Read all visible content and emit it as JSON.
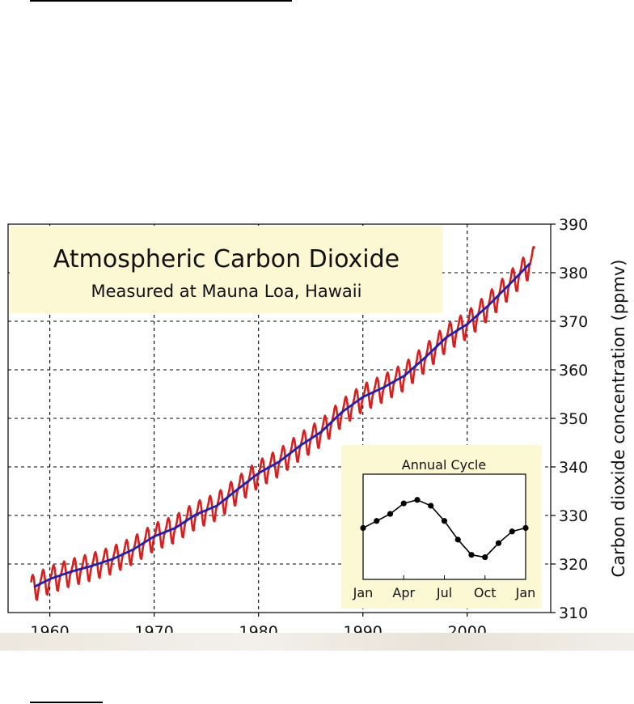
{
  "chart_data": {
    "type": "line",
    "title": "Atmospheric Carbon Dioxide",
    "subtitle": "Measured at Mauna Loa, Hawaii",
    "ylabel": "Carbon dioxide concentration (ppmv)",
    "xlabel": "",
    "xlim": [
      1956,
      2008
    ],
    "ylim": [
      310,
      390
    ],
    "xticks": [
      "1960",
      "1970",
      "1980",
      "1990",
      "2000"
    ],
    "yticks": [
      "310",
      "320",
      "330",
      "340",
      "350",
      "360",
      "370",
      "380",
      "390"
    ],
    "grid": true,
    "series": [
      {
        "color": "#d62020",
        "style": "monthly",
        "seasonal_amplitude": 3.0,
        "x": [
          1958.2,
          2006.5
        ]
      },
      {
        "color": "#2020b0",
        "style": "annual trend",
        "x": [
          1958.5,
          1960,
          1962,
          1964,
          1966,
          1968,
          1970,
          1972,
          1974,
          1976,
          1978,
          1980,
          1982,
          1984,
          1986,
          1988,
          1990,
          1992,
          1994,
          1996,
          1998,
          2000,
          2002,
          2004,
          2006
        ],
        "y": [
          315.3,
          316.9,
          318.4,
          319.6,
          321.0,
          323.0,
          325.7,
          327.4,
          330.2,
          332.0,
          335.4,
          338.7,
          341.1,
          344.4,
          347.2,
          351.3,
          354.4,
          356.4,
          358.8,
          362.6,
          366.7,
          369.4,
          373.2,
          377.5,
          381.9
        ]
      }
    ],
    "inset": {
      "type": "line",
      "title": "Annual Cycle",
      "categories": [
        "Jan",
        "Apr",
        "Jul",
        "Oct",
        "Jan"
      ],
      "months": [
        1,
        2,
        3,
        4,
        5,
        6,
        7,
        8,
        9,
        10,
        11,
        12,
        13
      ],
      "values": [
        1.4,
        2.0,
        2.6,
        3.5,
        3.8,
        3.3,
        2.0,
        0.4,
        -0.9,
        -1.1,
        0.1,
        1.1,
        1.4
      ],
      "ylim": [
        -3,
        6
      ]
    }
  }
}
